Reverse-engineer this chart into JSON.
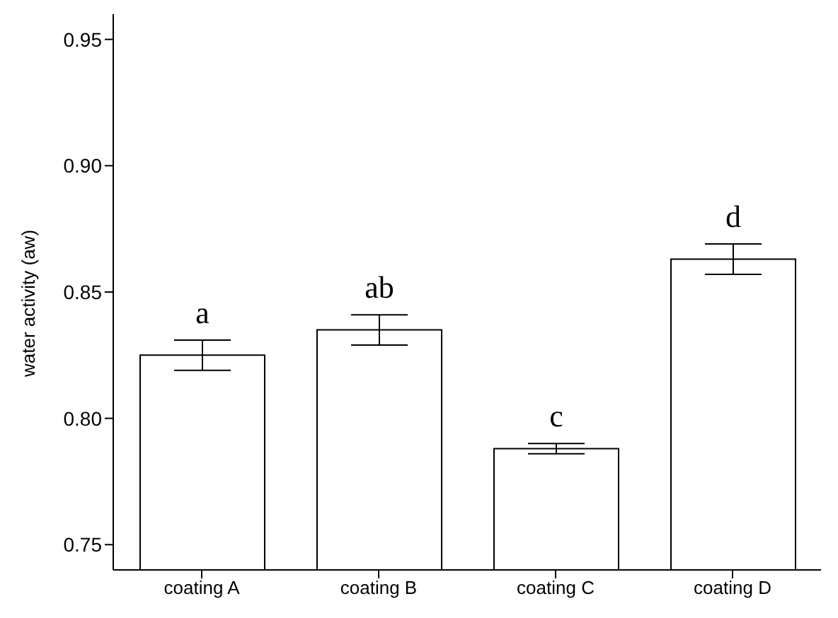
{
  "chart_data": {
    "type": "bar",
    "ylabel": "water activity (aw)",
    "categories": [
      "coating A",
      "coating B",
      "coating C",
      "coating D"
    ],
    "values": [
      0.825,
      0.835,
      0.788,
      0.863
    ],
    "errors": [
      0.006,
      0.006,
      0.002,
      0.006
    ],
    "color": "#ffffff",
    "ylim": [
      0.74,
      0.96
    ],
    "yticks": [
      {
        "value": 0.75,
        "label": "0.75"
      },
      {
        "value": 0.8,
        "label": "0.80"
      },
      {
        "value": 0.85,
        "label": "0.85"
      },
      {
        "value": 0.9,
        "label": "0.90"
      },
      {
        "value": 0.95,
        "label": "0.95"
      }
    ],
    "grid": false,
    "annotations": [
      "a",
      "ab",
      "c",
      "d"
    ]
  }
}
